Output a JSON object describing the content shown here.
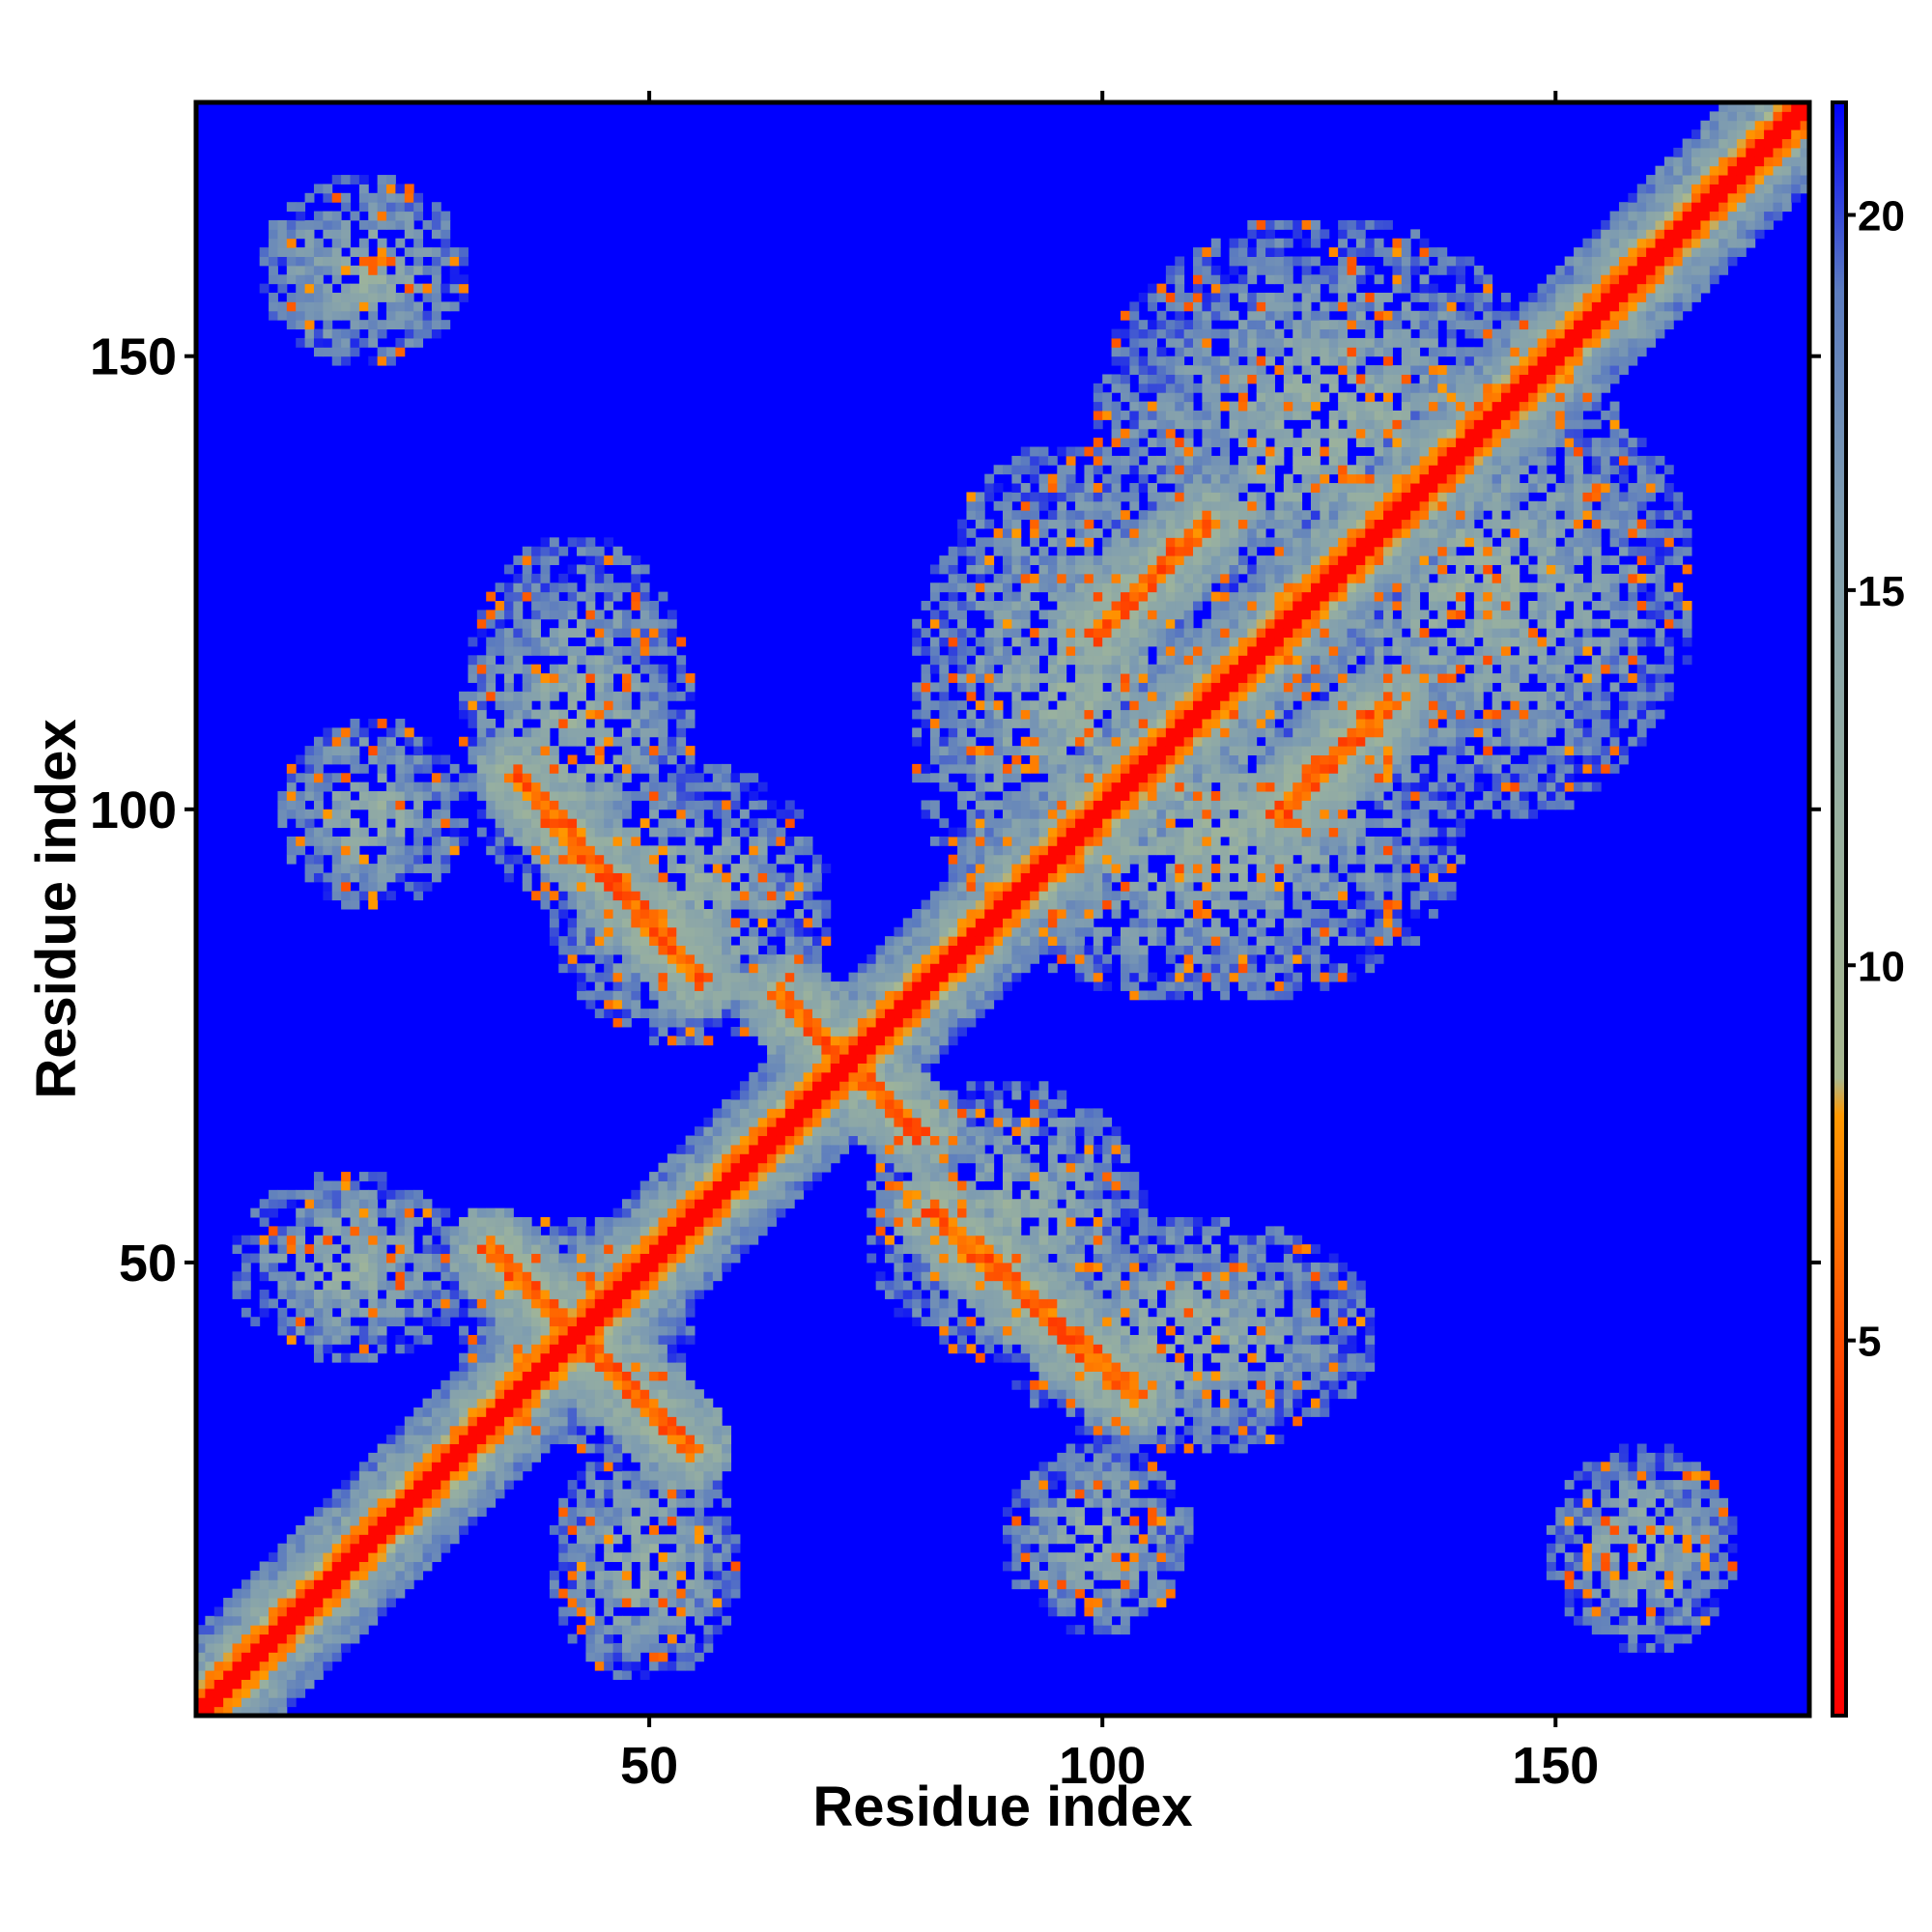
{
  "chart_data": {
    "type": "heatmap",
    "title": "",
    "xlabel": "Residue index",
    "ylabel": "Residue index",
    "n_residues": 178,
    "xlim": [
      0,
      178
    ],
    "ylim": [
      0,
      178
    ],
    "x_ticks": [
      50,
      100,
      150
    ],
    "y_ticks": [
      50,
      100,
      150
    ],
    "colorbar": {
      "ticks": [
        5,
        10,
        15,
        20
      ],
      "range": [
        0,
        21.5
      ],
      "stops": [
        {
          "value": 0,
          "color": "#ff0000"
        },
        {
          "value": 4,
          "color": "#ff3300"
        },
        {
          "value": 8,
          "color": "#ff9900"
        },
        {
          "value": 8.5,
          "color": "#a8b890"
        },
        {
          "value": 12,
          "color": "#98b0a0"
        },
        {
          "value": 16,
          "color": "#7f9db0"
        },
        {
          "value": 19,
          "color": "#5b7bbf"
        },
        {
          "value": 21.5,
          "color": "#0000ff"
        }
      ],
      "saturation_color": "#0000ff"
    },
    "description_of_values": "Pairwise residue distance map (symmetric). Values near 0 on the diagonal, saturating at ~21 (blue) for distant pairs.",
    "diagonal_band_halfwidth": 3,
    "contact_regions": [
      {
        "x": [
          30,
          55
        ],
        "y": [
          30,
          55
        ],
        "kind": "block"
      },
      {
        "x": [
          5,
          30
        ],
        "y": [
          40,
          60
        ],
        "kind": "block"
      },
      {
        "x": [
          40,
          60
        ],
        "y": [
          5,
          30
        ],
        "kind": "block"
      },
      {
        "x": [
          30,
          55
        ],
        "y": [
          90,
          130
        ],
        "kind": "block"
      },
      {
        "x": [
          90,
          130
        ],
        "y": [
          30,
          55
        ],
        "kind": "block"
      },
      {
        "x": [
          80,
          115
        ],
        "y": [
          85,
          140
        ],
        "kind": "block"
      },
      {
        "x": [
          85,
          140
        ],
        "y": [
          80,
          115
        ],
        "kind": "block"
      },
      {
        "x": [
          115,
          150
        ],
        "y": [
          115,
          150
        ],
        "kind": "block"
      },
      {
        "x": [
          120,
          165
        ],
        "y": [
          100,
          150
        ],
        "kind": "block"
      },
      {
        "x": [
          100,
          150
        ],
        "y": [
          120,
          165
        ],
        "kind": "block"
      },
      {
        "x": [
          8,
          30
        ],
        "y": [
          150,
          170
        ],
        "kind": "block"
      },
      {
        "x": [
          150,
          170
        ],
        "y": [
          8,
          30
        ],
        "kind": "block"
      },
      {
        "x": [
          10,
          30
        ],
        "y": [
          90,
          110
        ],
        "kind": "block"
      },
      {
        "x": [
          90,
          110
        ],
        "y": [
          10,
          30
        ],
        "kind": "block"
      },
      {
        "x": [
          75,
          105
        ],
        "y": [
          40,
          70
        ],
        "kind": "block"
      },
      {
        "x": [
          40,
          70
        ],
        "y": [
          75,
          105
        ],
        "kind": "block"
      }
    ],
    "anti_diagonal_strands": [
      {
        "from": [
          33,
          52
        ],
        "to": [
          55,
          30
        ]
      },
      {
        "from": [
          36,
          104
        ],
        "to": [
          56,
          82
        ]
      },
      {
        "from": [
          82,
          56
        ],
        "to": [
          104,
          36
        ]
      },
      {
        "from": [
          120,
          100
        ],
        "to": [
          132,
          112
        ]
      },
      {
        "from": [
          100,
          120
        ],
        "to": [
          112,
          132
        ]
      },
      {
        "from": [
          65,
          80
        ],
        "to": [
          80,
          65
        ]
      }
    ]
  }
}
